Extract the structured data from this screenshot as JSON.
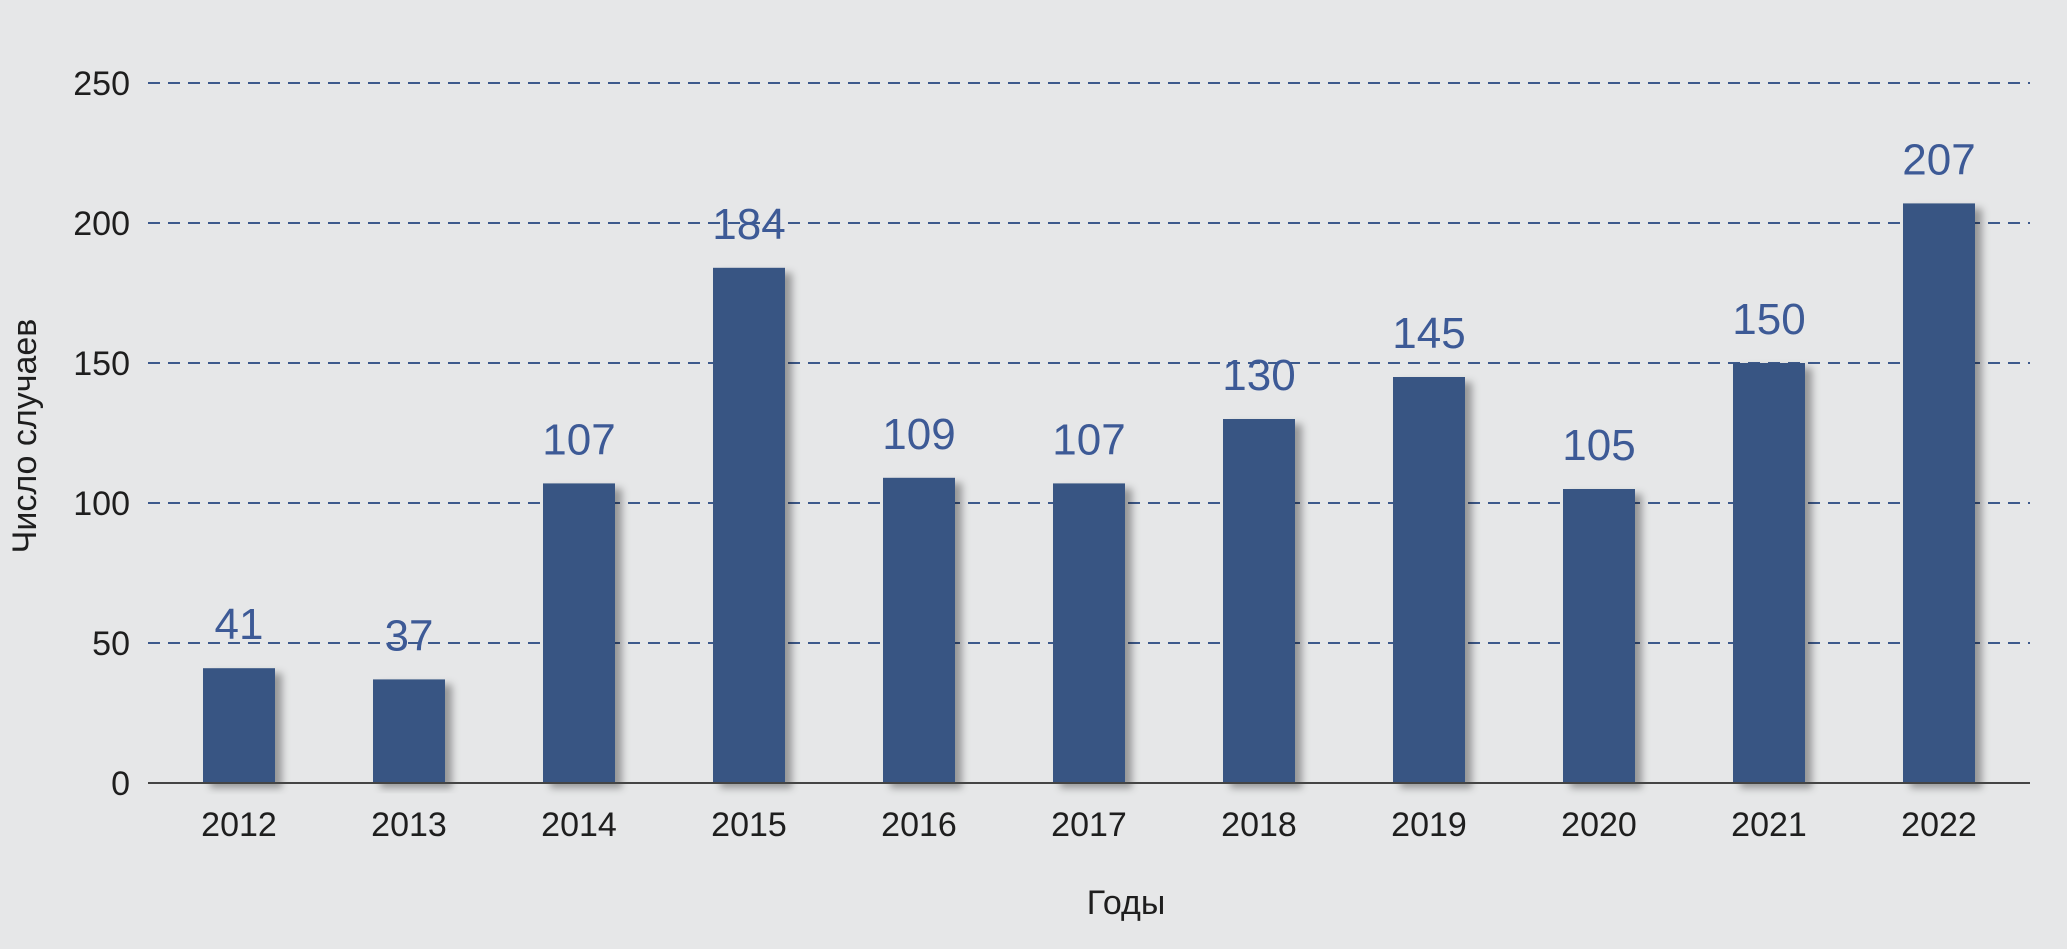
{
  "chart_data": {
    "type": "bar",
    "categories": [
      "2012",
      "2013",
      "2014",
      "2015",
      "2016",
      "2017",
      "2018",
      "2019",
      "2020",
      "2021",
      "2022"
    ],
    "values": [
      41,
      37,
      107,
      184,
      109,
      107,
      130,
      145,
      105,
      150,
      207
    ],
    "xlabel": "Годы",
    "ylabel": "Число случаев",
    "ylim": [
      0,
      250
    ],
    "yticks": [
      0,
      50,
      100,
      150,
      200,
      250
    ],
    "grid": true,
    "colors": {
      "bar": "#375583",
      "data_label": "#3d5a96",
      "gridline": "#3d5a8c",
      "background": "#e6e7e8"
    }
  }
}
